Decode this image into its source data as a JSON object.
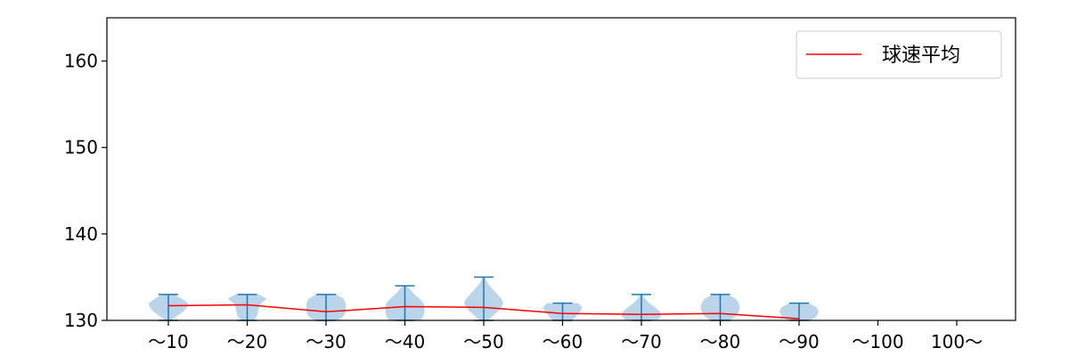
{
  "chart_data": {
    "type": "violin",
    "title": "",
    "xlabel": "",
    "ylabel": "",
    "categories": [
      "〜10",
      "〜20",
      "〜30",
      "〜40",
      "〜50",
      "〜60",
      "〜70",
      "〜80",
      "〜90",
      "〜100",
      "100〜"
    ],
    "ylim": [
      130,
      165
    ],
    "yticks": [
      130,
      140,
      150,
      160
    ],
    "grid": false,
    "legend": {
      "position": "top-right",
      "entries": [
        "球速平均"
      ]
    },
    "colors": {
      "violin_fill": "#a9c9e3",
      "violin_line": "#1f77b4",
      "mean_line": "#ff0000",
      "axes": "#000000"
    },
    "violins": [
      {
        "category": "〜10",
        "min": 130,
        "max": 133,
        "density": [
          [
            130.0,
            0.15
          ],
          [
            130.5,
            0.45
          ],
          [
            131.0,
            0.75
          ],
          [
            131.5,
            0.95
          ],
          [
            132.0,
            1.0
          ],
          [
            132.5,
            0.7
          ],
          [
            133.0,
            0.3
          ]
        ]
      },
      {
        "category": "〜20",
        "min": 130,
        "max": 133,
        "density": [
          [
            130.0,
            0.3
          ],
          [
            130.5,
            0.5
          ],
          [
            131.0,
            0.55
          ],
          [
            131.5,
            0.6
          ],
          [
            132.0,
            0.7
          ],
          [
            132.5,
            1.0
          ],
          [
            133.0,
            0.6
          ]
        ]
      },
      {
        "category": "〜30",
        "min": 130,
        "max": 133,
        "density": [
          [
            130.0,
            0.6
          ],
          [
            130.5,
            0.9
          ],
          [
            131.0,
            1.0
          ],
          [
            131.5,
            1.0
          ],
          [
            132.0,
            1.0
          ],
          [
            132.5,
            0.9
          ],
          [
            133.0,
            0.5
          ]
        ]
      },
      {
        "category": "〜40",
        "min": 130,
        "max": 134,
        "density": [
          [
            130.0,
            0.8
          ],
          [
            130.5,
            0.95
          ],
          [
            131.0,
            1.0
          ],
          [
            131.5,
            1.0
          ],
          [
            132.0,
            0.95
          ],
          [
            132.5,
            0.75
          ],
          [
            133.0,
            0.5
          ],
          [
            133.5,
            0.3
          ],
          [
            134.0,
            0.1
          ]
        ]
      },
      {
        "category": "〜50",
        "min": 130,
        "max": 135,
        "density": [
          [
            130.0,
            0.2
          ],
          [
            130.5,
            0.45
          ],
          [
            131.0,
            0.7
          ],
          [
            131.5,
            0.9
          ],
          [
            132.0,
            1.0
          ],
          [
            132.5,
            0.9
          ],
          [
            133.0,
            0.7
          ],
          [
            133.5,
            0.5
          ],
          [
            134.0,
            0.3
          ],
          [
            134.5,
            0.15
          ],
          [
            135.0,
            0.05
          ]
        ]
      },
      {
        "category": "〜60",
        "min": 130,
        "max": 132,
        "density": [
          [
            130.0,
            0.5
          ],
          [
            130.5,
            0.7
          ],
          [
            131.0,
            0.9
          ],
          [
            131.5,
            1.0
          ],
          [
            132.0,
            0.8
          ]
        ]
      },
      {
        "category": "〜70",
        "min": 130,
        "max": 133,
        "density": [
          [
            130.0,
            0.8
          ],
          [
            130.5,
            1.0
          ],
          [
            131.0,
            0.95
          ],
          [
            131.5,
            0.7
          ],
          [
            132.0,
            0.4
          ],
          [
            132.5,
            0.2
          ],
          [
            133.0,
            0.05
          ]
        ]
      },
      {
        "category": "〜80",
        "min": 130,
        "max": 133,
        "density": [
          [
            130.0,
            0.5
          ],
          [
            130.5,
            0.8
          ],
          [
            131.0,
            0.95
          ],
          [
            131.5,
            1.0
          ],
          [
            132.0,
            0.95
          ],
          [
            132.5,
            0.8
          ],
          [
            133.0,
            0.4
          ]
        ]
      },
      {
        "category": "〜90",
        "min": 130,
        "max": 132,
        "density": [
          [
            130.0,
            0.6
          ],
          [
            130.5,
            0.9
          ],
          [
            131.0,
            1.0
          ],
          [
            131.5,
            0.9
          ],
          [
            132.0,
            0.5
          ]
        ]
      }
    ],
    "series": [
      {
        "name": "球速平均",
        "categories": [
          "〜10",
          "〜20",
          "〜30",
          "〜40",
          "〜50",
          "〜60",
          "〜70",
          "〜80",
          "〜90"
        ],
        "values": [
          131.7,
          131.8,
          131.0,
          131.6,
          131.5,
          130.8,
          130.7,
          130.8,
          130.2
        ]
      }
    ]
  }
}
